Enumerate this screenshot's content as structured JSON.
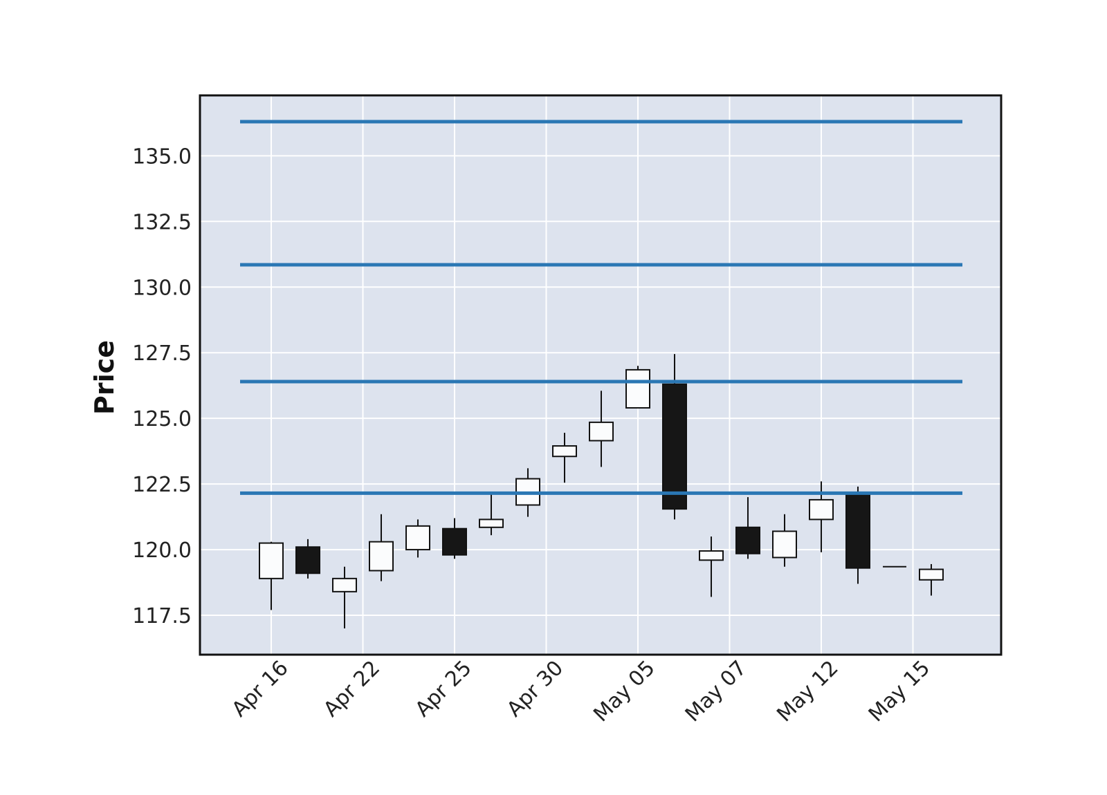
{
  "chart_data": {
    "type": "candlestick",
    "title": "",
    "xlabel": "",
    "ylabel": "Price",
    "ylim": [
      116.0,
      137.3
    ],
    "y_ticks": [
      "117.5",
      "120.0",
      "122.5",
      "125.0",
      "127.5",
      "130.0",
      "132.5",
      "135.0"
    ],
    "y_tick_values": [
      117.5,
      120.0,
      122.5,
      125.0,
      127.5,
      130.0,
      132.5,
      135.0
    ],
    "x_tick_labels": [
      {
        "label": "Apr 16",
        "index": 0
      },
      {
        "label": "Apr 22",
        "index": 2.5
      },
      {
        "label": "Apr 25",
        "index": 5
      },
      {
        "label": "Apr 30",
        "index": 7.5
      },
      {
        "label": "May 05",
        "index": 10
      },
      {
        "label": "May 07",
        "index": 12.5
      },
      {
        "label": "May 12",
        "index": 15
      },
      {
        "label": "May 15",
        "index": 17.5
      }
    ],
    "grid": true,
    "background": "#dde3ee",
    "up_color": "#fbfcfd",
    "down_color": "#161616",
    "hline_color": "#2a77b4",
    "hlines": [
      122.15,
      126.4,
      130.85,
      136.3
    ],
    "candles": [
      {
        "open": 118.9,
        "high": 120.3,
        "low": 117.7,
        "close": 120.25
      },
      {
        "open": 120.1,
        "high": 120.4,
        "low": 118.9,
        "close": 119.1
      },
      {
        "open": 118.4,
        "high": 119.35,
        "low": 117.0,
        "close": 118.9
      },
      {
        "open": 119.2,
        "high": 121.35,
        "low": 118.8,
        "close": 120.3
      },
      {
        "open": 120.0,
        "high": 121.15,
        "low": 119.7,
        "close": 120.9
      },
      {
        "open": 120.8,
        "high": 121.2,
        "low": 119.65,
        "close": 119.8
      },
      {
        "open": 120.85,
        "high": 122.1,
        "low": 120.55,
        "close": 121.15
      },
      {
        "open": 121.7,
        "high": 123.1,
        "low": 121.25,
        "close": 122.7
      },
      {
        "open": 123.55,
        "high": 124.45,
        "low": 122.55,
        "close": 123.95
      },
      {
        "open": 124.15,
        "high": 126.05,
        "low": 123.15,
        "close": 124.85
      },
      {
        "open": 125.4,
        "high": 127.0,
        "low": 125.4,
        "close": 126.85
      },
      {
        "open": 126.3,
        "high": 127.45,
        "low": 121.15,
        "close": 121.55
      },
      {
        "open": 119.6,
        "high": 120.5,
        "low": 118.2,
        "close": 119.95
      },
      {
        "open": 120.85,
        "high": 122.0,
        "low": 119.65,
        "close": 119.85
      },
      {
        "open": 119.7,
        "high": 121.35,
        "low": 119.35,
        "close": 120.7
      },
      {
        "open": 121.15,
        "high": 122.6,
        "low": 119.9,
        "close": 121.9
      },
      {
        "open": 122.15,
        "high": 122.4,
        "low": 118.7,
        "close": 119.3
      },
      {
        "open": 119.35,
        "high": 119.35,
        "low": 119.35,
        "close": 119.35
      },
      {
        "open": 118.85,
        "high": 119.45,
        "low": 118.25,
        "close": 119.25
      }
    ]
  }
}
